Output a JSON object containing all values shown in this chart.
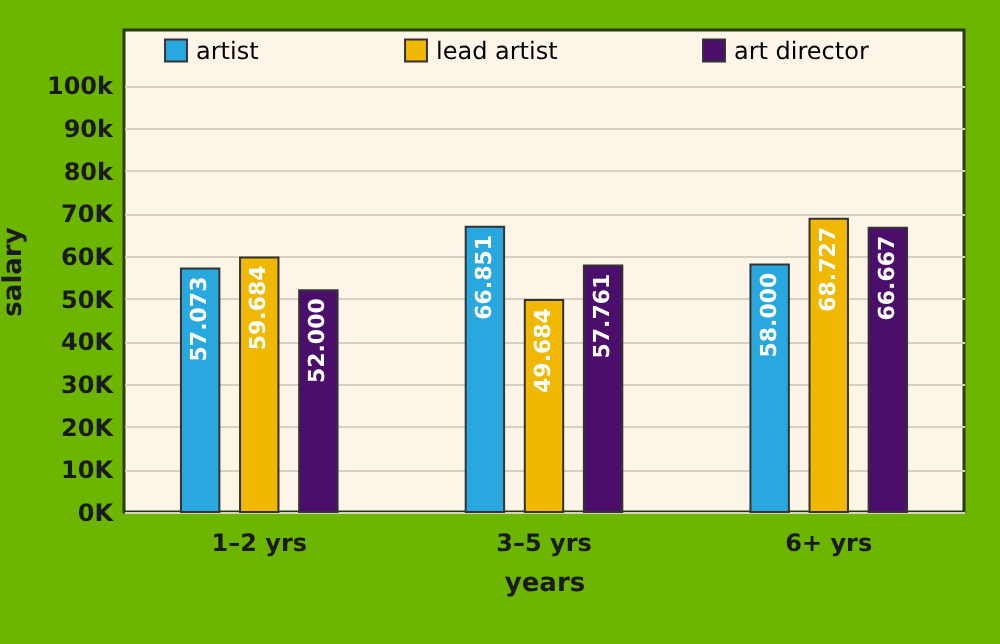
{
  "chart_data": {
    "type": "bar",
    "xlabel": "years",
    "ylabel": "salary",
    "categories": [
      "1–2 yrs",
      "3–5 yrs",
      "6+ yrs"
    ],
    "series": [
      {
        "name": "artist",
        "color": "#29a8e0",
        "values": [
          57073,
          66851,
          58000
        ],
        "value_labels": [
          "57.073",
          "66.851",
          "58.000"
        ]
      },
      {
        "name": "lead artist",
        "color": "#f0b800",
        "values": [
          59684,
          49684,
          68727
        ],
        "value_labels": [
          "59.684",
          "49.684",
          "68.727"
        ]
      },
      {
        "name": "art director",
        "color": "#4b0f6b",
        "values": [
          52000,
          57761,
          66667
        ],
        "value_labels": [
          "52.000",
          "57.761",
          "66.667"
        ]
      }
    ],
    "ylim": [
      0,
      113000
    ],
    "yticks": [
      {
        "value": 0,
        "label": "0K"
      },
      {
        "value": 10000,
        "label": "10K"
      },
      {
        "value": 20000,
        "label": "20K"
      },
      {
        "value": 30000,
        "label": "30K"
      },
      {
        "value": 40000,
        "label": "40K"
      },
      {
        "value": 50000,
        "label": "50K"
      },
      {
        "value": 60000,
        "label": "60K"
      },
      {
        "value": 70000,
        "label": "70K"
      },
      {
        "value": 80000,
        "label": "80k"
      },
      {
        "value": 90000,
        "label": "90k"
      },
      {
        "value": 100000,
        "label": "100k"
      }
    ],
    "grid": "y",
    "legend": "top"
  }
}
